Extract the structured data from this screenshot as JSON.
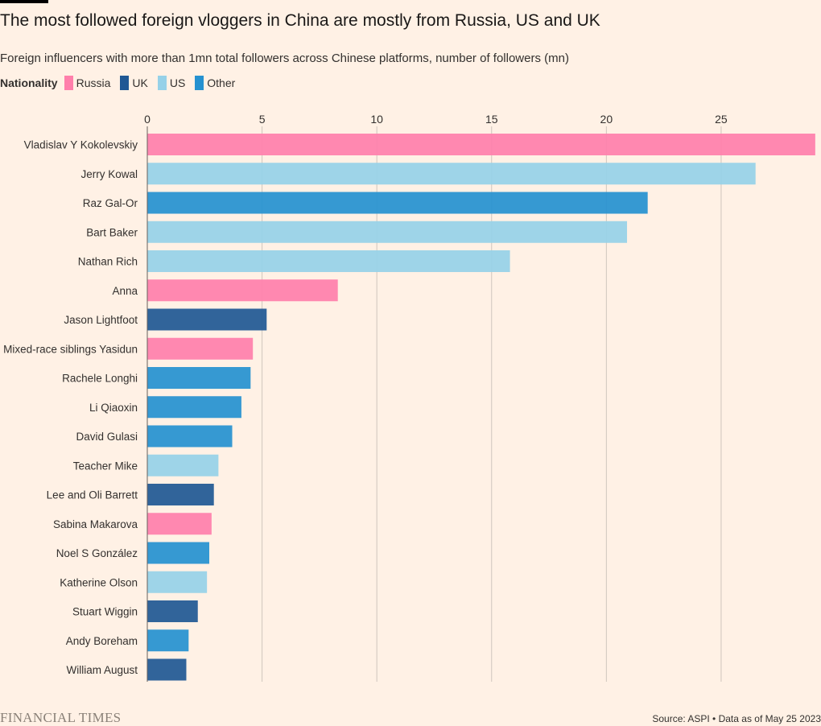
{
  "title": "The most followed foreign vloggers in China are mostly from Russia, US and UK",
  "subtitle": "Foreign influencers with more than 1mn total followers across Chinese platforms, number of followers (mn)",
  "legend": {
    "title": "Nationality",
    "items": [
      {
        "label": "Russia",
        "color": "#ff7fab"
      },
      {
        "label": "UK",
        "color": "#1f5894"
      },
      {
        "label": "US",
        "color": "#96d1e8"
      },
      {
        "label": "Other",
        "color": "#2591d0"
      }
    ]
  },
  "chart_data": {
    "type": "bar",
    "orientation": "horizontal",
    "xlim": [
      0,
      29
    ],
    "xticks": [
      0,
      5,
      10,
      15,
      20,
      25
    ],
    "grid": true,
    "legend_position": "top-left",
    "categories": [
      "Vladislav Y Kokolevskiy",
      "Jerry Kowal",
      "Raz Gal-Or",
      "Bart Baker",
      "Nathan Rich",
      "Anna",
      "Jason Lightfoot",
      "Mixed-race siblings Yasidun",
      "Rachele Longhi",
      "Li Qiaoxin",
      "David Gulasi",
      "Teacher Mike",
      "Lee and Oli Barrett",
      "Sabina Makarova",
      "Noel S González",
      "Katherine Olson",
      "Stuart Wiggin",
      "Andy Boreham",
      "William August"
    ],
    "values": [
      29.1,
      26.5,
      21.8,
      20.9,
      15.8,
      8.3,
      5.2,
      4.6,
      4.5,
      4.1,
      3.7,
      3.1,
      2.9,
      2.8,
      2.7,
      2.6,
      2.2,
      1.8,
      1.7
    ],
    "nationality": [
      "Russia",
      "US",
      "Other",
      "US",
      "US",
      "Russia",
      "UK",
      "Russia",
      "Other",
      "Other",
      "Other",
      "US",
      "UK",
      "Russia",
      "Other",
      "US",
      "UK",
      "Other",
      "UK"
    ]
  },
  "footer": {
    "logo": "FINANCIAL TIMES",
    "source": "Source: ASPI • Data as of May 25 2023"
  }
}
